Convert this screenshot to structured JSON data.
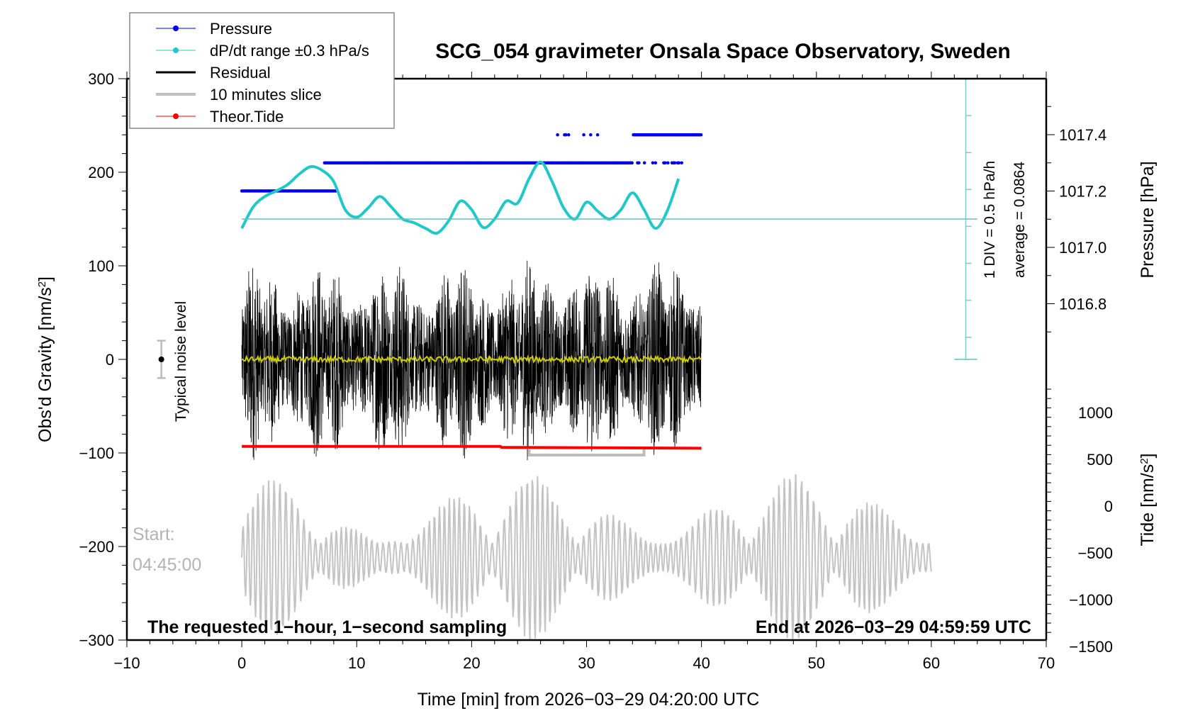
{
  "chart_data": {
    "type": "line",
    "title": "SCG_054 gravimeter Onsala Space Observatory, Sweden",
    "xlabel": "Time [min] from 2026−03−29 04:20:00 UTC",
    "ylabel_left": "Obs'd Gravity [nm/s²]",
    "ylabel_right_top": "Pressure [hPa]",
    "ylabel_right_bottom": "Tide [nm/s²]",
    "xlim": [
      -10,
      70
    ],
    "ylim": [
      -300,
      300
    ],
    "x_ticks": [
      -10,
      0,
      10,
      20,
      30,
      40,
      50,
      60,
      70
    ],
    "x_tick_labels": [
      "−10",
      "0",
      "10",
      "20",
      "30",
      "40",
      "50",
      "60",
      "70"
    ],
    "y_ticks": [
      300,
      200,
      100,
      0,
      -100,
      -200,
      -300
    ],
    "y_tick_labels": [
      "300",
      "200",
      "100",
      "0",
      "−100",
      "−200",
      "−300"
    ],
    "pressure_axis": {
      "ticks": [
        1017.4,
        1017.2,
        1017.0,
        1016.8
      ],
      "tick_labels": [
        "1017.4",
        "1017.2",
        "1017.0",
        "1016.8"
      ]
    },
    "tide_axis": {
      "ticks": [
        1000,
        500,
        0,
        -500,
        -1000,
        -1500
      ],
      "tick_labels": [
        "1000",
        "500",
        "0",
        "−500",
        "−1000",
        "−1500"
      ]
    },
    "legend": {
      "placement": "top-left",
      "entries": [
        {
          "label": "Pressure",
          "color": "#0000ee",
          "marker": "dot"
        },
        {
          "label": "dP/dt range ±0.3 hPa/s",
          "color": "#22c8c8",
          "marker": "dot"
        },
        {
          "label": "Residual",
          "color": "#000000",
          "marker": "line"
        },
        {
          "label": "10 minutes slice",
          "color": "#c0c0c0",
          "marker": "thick-line"
        },
        {
          "label": "Theor.Tide",
          "color": "#ff0000",
          "marker": "dot"
        }
      ]
    },
    "annotations": {
      "noise_label": "Typical noise level",
      "div_label": "1 DIV = 0.5 hPa/h",
      "average_label": "average = 0.0864",
      "start_label": "Start:",
      "start_time": "04:45:00",
      "bottom_left": "The requested 1−hour, 1−second sampling",
      "bottom_right": "End at 2026−03−29 04:59:59 UTC"
    },
    "series": [
      {
        "name": "Pressure",
        "color": "#0000ee",
        "segments": [
          {
            "x_start": 0,
            "x_end": 8.3,
            "y": 180
          },
          {
            "x_start": 7.2,
            "x_end": 38.5,
            "y": 210
          },
          {
            "x_start": 27,
            "x_end": 40,
            "y": 240
          }
        ]
      },
      {
        "name": "dP/dt",
        "color": "#22c8c8",
        "x": [
          0,
          1,
          2,
          3,
          4,
          5,
          6,
          7,
          8,
          9,
          10,
          11,
          12,
          13,
          14,
          15,
          16,
          17,
          18,
          19,
          20,
          21,
          22,
          23,
          24,
          25,
          26,
          27,
          28,
          29,
          30,
          31,
          32,
          33,
          34,
          35,
          36,
          37,
          38
        ],
        "y": [
          140,
          163,
          174,
          180,
          187,
          198,
          206,
          202,
          190,
          160,
          152,
          162,
          174,
          163,
          150,
          146,
          140,
          135,
          148,
          169,
          160,
          141,
          150,
          169,
          167,
          193,
          211,
          190,
          162,
          150,
          168,
          158,
          150,
          160,
          178,
          160,
          140,
          158,
          193
        ]
      },
      {
        "name": "Residual",
        "color": "#000000",
        "x_range": [
          0,
          40
        ],
        "amplitude": 110,
        "mean": 0
      },
      {
        "name": "Theor.Tide",
        "color": "#ff0000",
        "x": [
          0,
          22.5,
          22.6,
          40
        ],
        "y": [
          -93,
          -93,
          -94,
          -95
        ]
      },
      {
        "name": "10 minutes slice",
        "color": "#c0c0c0",
        "x_range": [
          0,
          60
        ],
        "tide_amplitude_range": [
          -1500,
          700
        ],
        "bracket": {
          "x_start": 25,
          "x_end": 35,
          "y": -100
        }
      }
    ],
    "dpdt_scale": {
      "x": 63,
      "reference_y": 150,
      "bottom_y": 0,
      "top_y": 300
    },
    "noise_bar": {
      "x": -7,
      "center": 0,
      "half_range": 20
    }
  }
}
